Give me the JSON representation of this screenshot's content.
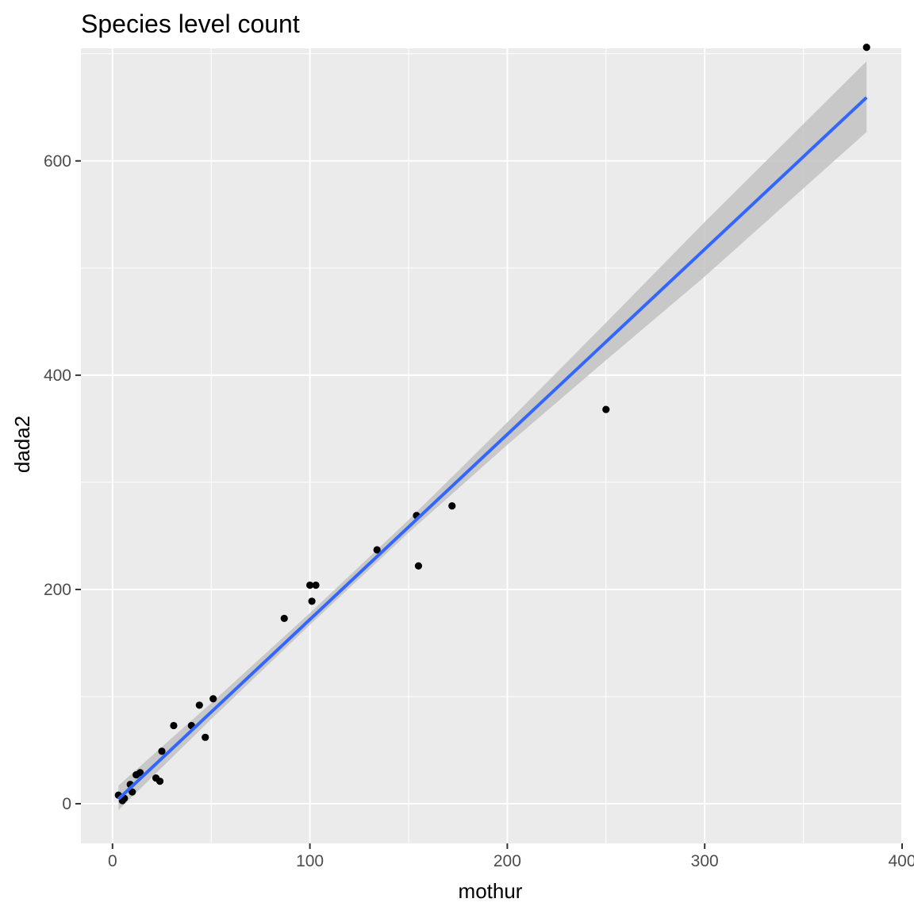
{
  "chart_data": {
    "type": "scatter",
    "title": "Species level count",
    "xlabel": "mothur",
    "ylabel": "dada2",
    "xlim": [
      -16,
      400
    ],
    "ylim": [
      -37,
      705
    ],
    "x_ticks": [
      0,
      100,
      200,
      300,
      400
    ],
    "y_ticks": [
      0,
      200,
      400,
      600
    ],
    "x_tick_labels": [
      "0",
      "100",
      "200",
      "300",
      "400"
    ],
    "y_tick_labels": [
      "0",
      "200",
      "400",
      "600"
    ],
    "grid": true,
    "legend": "none",
    "colors": {
      "panel": "#ebebeb",
      "grid": "#ffffff",
      "points": "#000000",
      "fit_line": "#3366ff",
      "ribbon": "#c2c2c2"
    },
    "points": [
      {
        "x": 3,
        "y": 8
      },
      {
        "x": 5,
        "y": 3
      },
      {
        "x": 6,
        "y": 5
      },
      {
        "x": 9,
        "y": 18
      },
      {
        "x": 10,
        "y": 11
      },
      {
        "x": 12,
        "y": 27
      },
      {
        "x": 14,
        "y": 29
      },
      {
        "x": 22,
        "y": 24
      },
      {
        "x": 24,
        "y": 21
      },
      {
        "x": 25,
        "y": 49
      },
      {
        "x": 31,
        "y": 73
      },
      {
        "x": 40,
        "y": 73
      },
      {
        "x": 44,
        "y": 92
      },
      {
        "x": 47,
        "y": 62
      },
      {
        "x": 51,
        "y": 98
      },
      {
        "x": 87,
        "y": 173
      },
      {
        "x": 100,
        "y": 204
      },
      {
        "x": 101,
        "y": 189
      },
      {
        "x": 103,
        "y": 204
      },
      {
        "x": 134,
        "y": 237
      },
      {
        "x": 154,
        "y": 269
      },
      {
        "x": 155,
        "y": 222
      },
      {
        "x": 172,
        "y": 278
      },
      {
        "x": 250,
        "y": 368
      },
      {
        "x": 382,
        "y": 706
      }
    ],
    "fit": {
      "method": "linear",
      "x_range": [
        3,
        382
      ],
      "intercept": -0.8,
      "slope": 1.7278,
      "ci_band": [
        {
          "x": 3,
          "lo": -6,
          "hi": 17
        },
        {
          "x": 50,
          "lo": 79,
          "hi": 94
        },
        {
          "x": 100,
          "lo": 167,
          "hi": 178
        },
        {
          "x": 150,
          "lo": 253,
          "hi": 265
        },
        {
          "x": 200,
          "lo": 335,
          "hi": 356
        },
        {
          "x": 250,
          "lo": 414,
          "hi": 449
        },
        {
          "x": 300,
          "lo": 492,
          "hi": 543
        },
        {
          "x": 382,
          "lo": 627,
          "hi": 693
        }
      ]
    }
  }
}
